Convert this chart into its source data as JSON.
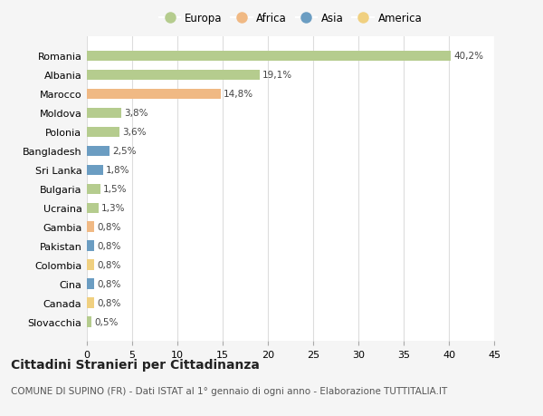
{
  "categories": [
    "Romania",
    "Albania",
    "Marocco",
    "Moldova",
    "Polonia",
    "Bangladesh",
    "Sri Lanka",
    "Bulgaria",
    "Ucraina",
    "Gambia",
    "Pakistan",
    "Colombia",
    "Cina",
    "Canada",
    "Slovacchia"
  ],
  "values": [
    40.2,
    19.1,
    14.8,
    3.8,
    3.6,
    2.5,
    1.8,
    1.5,
    1.3,
    0.8,
    0.8,
    0.8,
    0.8,
    0.8,
    0.5
  ],
  "labels": [
    "40,2%",
    "19,1%",
    "14,8%",
    "3,8%",
    "3,6%",
    "2,5%",
    "1,8%",
    "1,5%",
    "1,3%",
    "0,8%",
    "0,8%",
    "0,8%",
    "0,8%",
    "0,8%",
    "0,5%"
  ],
  "continents": [
    "Europa",
    "Europa",
    "Africa",
    "Europa",
    "Europa",
    "Asia",
    "Asia",
    "Europa",
    "Europa",
    "Africa",
    "Asia",
    "America",
    "Asia",
    "America",
    "Europa"
  ],
  "continent_colors": {
    "Europa": "#b5cc8e",
    "Africa": "#f0b984",
    "Asia": "#6b9dc2",
    "America": "#f0d080"
  },
  "legend_order": [
    "Europa",
    "Africa",
    "Asia",
    "America"
  ],
  "xlim": [
    0,
    45
  ],
  "xticks": [
    0,
    5,
    10,
    15,
    20,
    25,
    30,
    35,
    40,
    45
  ],
  "title": "Cittadini Stranieri per Cittadinanza",
  "subtitle": "COMUNE DI SUPINO (FR) - Dati ISTAT al 1° gennaio di ogni anno - Elaborazione TUTTITALIA.IT",
  "background_color": "#f5f5f5",
  "plot_background": "#ffffff",
  "grid_color": "#dddddd",
  "title_fontsize": 10,
  "subtitle_fontsize": 7.5,
  "bar_height": 0.55
}
